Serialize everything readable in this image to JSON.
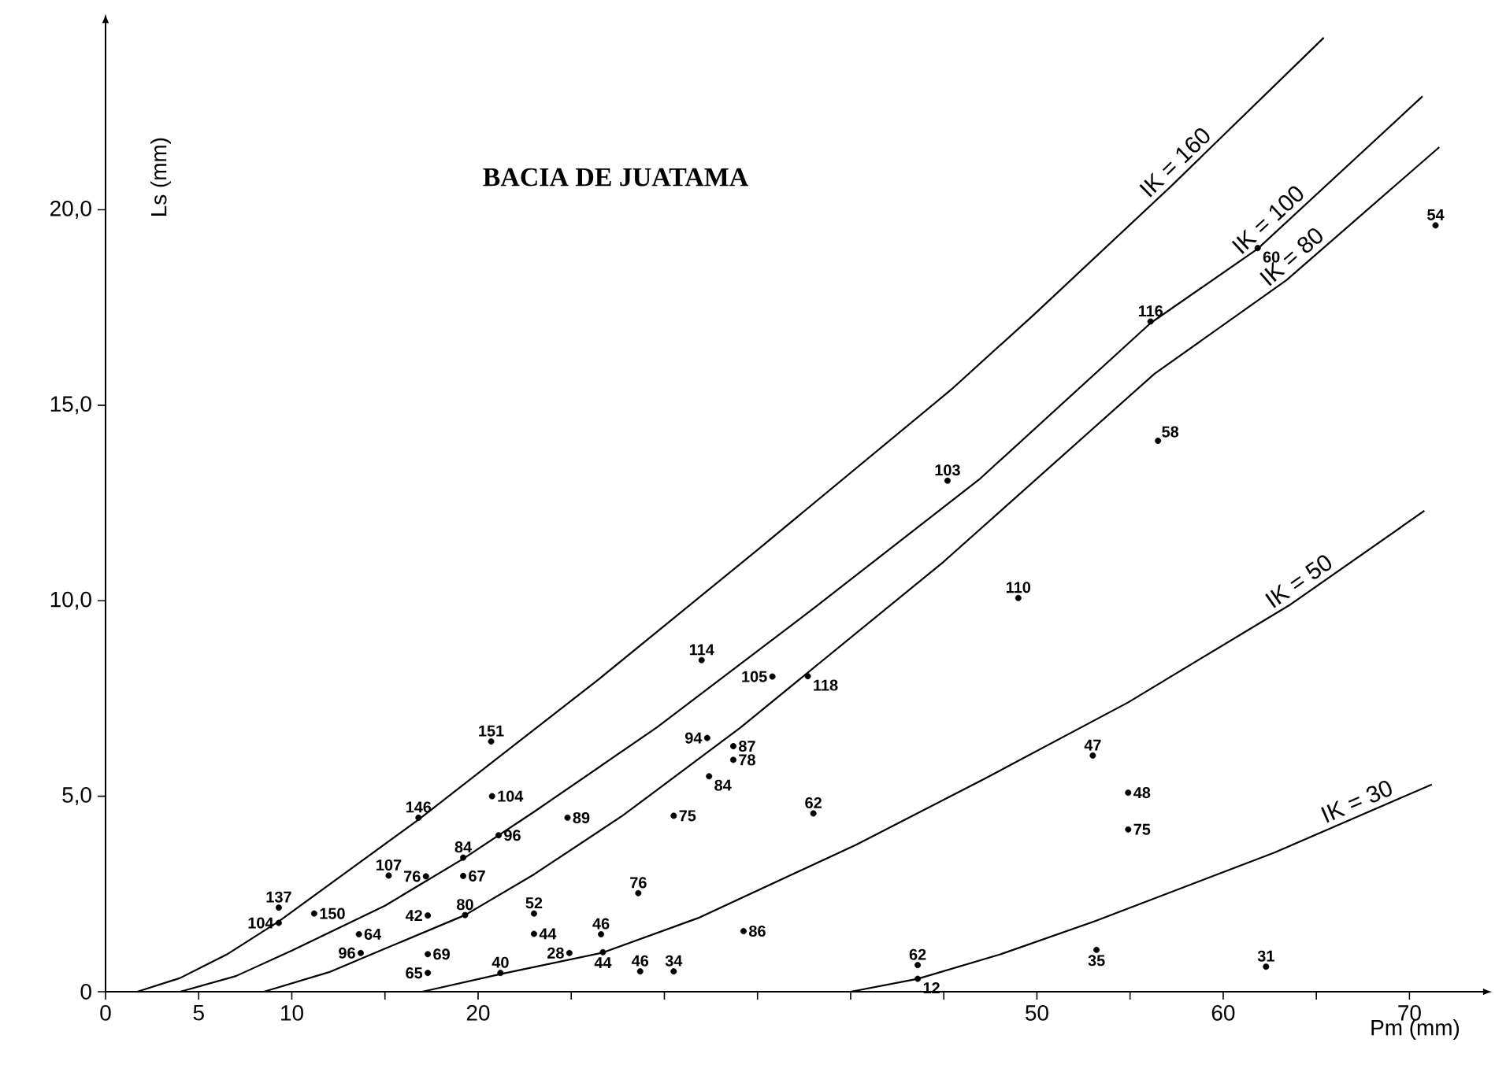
{
  "chart_data": {
    "type": "line",
    "title": "BACIA DE JUATAMA",
    "xlabel": "Pm (mm)",
    "ylabel": "Ls (mm)",
    "xlim": [
      0,
      74
    ],
    "ylim": [
      0,
      24.8
    ],
    "xticks": [
      0,
      5,
      10,
      {
        "value": 15,
        "label": null
      },
      20,
      {
        "value": 25,
        "label": null
      },
      {
        "value": 30,
        "label": null
      },
      {
        "value": 35,
        "label": null
      },
      {
        "value": 40,
        "label": null
      },
      {
        "value": 45,
        "label": null
      },
      50,
      {
        "value": 55,
        "label": null
      },
      60,
      {
        "value": 65,
        "label": null
      },
      70
    ],
    "yticks": [
      0,
      {
        "value": 5,
        "label": "5,0"
      },
      {
        "value": 10,
        "label": "10,0"
      },
      {
        "value": 15,
        "label": "15,0"
      },
      {
        "value": 20,
        "label": "20,0"
      }
    ],
    "line_style": "solid",
    "series": [
      {
        "name": "IK = 160",
        "marker": "none",
        "color": "#000000",
        "x": [
          1.7,
          4,
          6.5,
          9.3,
          16.8,
          26.5,
          35,
          45.4,
          49.8,
          57.2,
          65.4
        ],
        "values": [
          0,
          0.35,
          0.95,
          1.8,
          4.4,
          8.0,
          11.3,
          15.4,
          17.3,
          20.6,
          24.4
        ]
      },
      {
        "name": "IK = 100",
        "marker": "none",
        "color": "#000000",
        "x": [
          4,
          7,
          10,
          15,
          19.2,
          23,
          29.6,
          38,
          46.9,
          56.1,
          61.85,
          70.7
        ],
        "values": [
          0,
          0.4,
          1.05,
          2.2,
          3.4,
          4.6,
          6.76,
          9.8,
          13.1,
          17.1,
          19.0,
          22.9
        ]
      },
      {
        "name": "IK = 80",
        "marker": "none",
        "color": "#000000",
        "x": [
          8.5,
          12,
          15,
          19.3,
          23,
          27.75,
          34.1,
          45,
          56.3,
          63.4,
          71.6
        ],
        "values": [
          0,
          0.5,
          1.1,
          1.96,
          3.0,
          4.5,
          6.76,
          11.0,
          15.8,
          18.2,
          21.6
        ]
      },
      {
        "name": "IK = 50",
        "marker": "none",
        "color": "#000000",
        "x": [
          17,
          21.2,
          26.7,
          31.9,
          40.3,
          47,
          54.9,
          63.6,
          70.8
        ],
        "values": [
          0,
          0.45,
          1.0,
          1.9,
          3.76,
          5.4,
          7.4,
          9.9,
          12.3
        ]
      },
      {
        "name": "IK = 30",
        "marker": "none",
        "color": "#000000",
        "x": [
          40.0,
          43.6,
          48,
          53.1,
          62.75,
          71.2
        ],
        "values": [
          0,
          0.33,
          0.95,
          1.8,
          3.56,
          5.3
        ]
      },
      {
        "type": "scatter",
        "marker": "circle",
        "color": "#000000",
        "x": [
          9.3,
          9.3,
          11.2,
          16.8,
          15.2,
          17.2,
          19.2,
          19.2,
          21.1,
          20.75,
          20.7,
          24.8,
          17.3,
          19.3,
          13.6,
          13.7,
          17.3,
          17.3,
          21.2,
          23.0,
          23.0,
          24.9,
          26.6,
          26.7,
          28.6,
          28.7,
          30.5,
          30.5,
          32.0,
          35.8,
          37.7,
          32.3,
          33.7,
          33.7,
          32.4,
          38.0,
          34.25,
          43.6,
          43.6,
          53.0,
          54.9,
          54.9,
          53.2,
          62.3,
          45.2,
          49.0,
          56.1,
          56.5,
          61.85,
          71.4
        ],
        "values": [
          2.15,
          1.76,
          2.0,
          4.45,
          2.97,
          2.95,
          3.43,
          2.96,
          4.0,
          5.0,
          6.4,
          4.45,
          1.95,
          1.96,
          1.47,
          0.99,
          0.96,
          0.48,
          0.48,
          2.0,
          1.48,
          0.99,
          1.47,
          1.01,
          2.52,
          0.52,
          0.52,
          4.5,
          8.48,
          8.06,
          8.07,
          6.49,
          6.28,
          5.93,
          5.51,
          4.56,
          1.55,
          0.68,
          0.33,
          6.04,
          5.09,
          4.15,
          1.07,
          0.64,
          13.07,
          10.07,
          17.14,
          14.09,
          19.02,
          19.6
        ]
      }
    ],
    "annotations": [
      {
        "text": "137",
        "x": 9.3,
        "y": 2.15
      },
      {
        "text": "104",
        "x": 9.3,
        "y": 1.76
      },
      {
        "text": "150",
        "x": 11.2,
        "y": 2.0
      },
      {
        "text": "146",
        "x": 16.8,
        "y": 4.45
      },
      {
        "text": "107",
        "x": 15.2,
        "y": 2.97
      },
      {
        "text": "76",
        "x": 17.2,
        "y": 2.95
      },
      {
        "text": "84",
        "x": 19.2,
        "y": 3.43
      },
      {
        "text": "67",
        "x": 19.2,
        "y": 2.96
      },
      {
        "text": "96",
        "x": 21.1,
        "y": 4.0
      },
      {
        "text": "104",
        "x": 20.75,
        "y": 5.0
      },
      {
        "text": "151",
        "x": 20.7,
        "y": 6.4
      },
      {
        "text": "89",
        "x": 24.8,
        "y": 4.45
      },
      {
        "text": "42",
        "x": 17.3,
        "y": 1.95
      },
      {
        "text": "80",
        "x": 19.3,
        "y": 1.96
      },
      {
        "text": "64",
        "x": 13.6,
        "y": 1.47
      },
      {
        "text": "96",
        "x": 13.7,
        "y": 0.99
      },
      {
        "text": "69",
        "x": 17.3,
        "y": 0.96
      },
      {
        "text": "65",
        "x": 17.3,
        "y": 0.48
      },
      {
        "text": "40",
        "x": 21.2,
        "y": 0.48
      },
      {
        "text": "52",
        "x": 23.0,
        "y": 2.0
      },
      {
        "text": "44",
        "x": 23.0,
        "y": 1.48
      },
      {
        "text": "28",
        "x": 24.9,
        "y": 0.99
      },
      {
        "text": "46",
        "x": 26.6,
        "y": 1.47
      },
      {
        "text": "44",
        "x": 26.7,
        "y": 1.01
      },
      {
        "text": "76",
        "x": 28.6,
        "y": 2.52
      },
      {
        "text": "46",
        "x": 28.7,
        "y": 0.52
      },
      {
        "text": "34",
        "x": 30.5,
        "y": 0.52
      },
      {
        "text": "75",
        "x": 30.5,
        "y": 4.5
      },
      {
        "text": "114",
        "x": 32.0,
        "y": 8.48
      },
      {
        "text": "105",
        "x": 35.8,
        "y": 8.06
      },
      {
        "text": "118",
        "x": 37.7,
        "y": 8.07
      },
      {
        "text": "94",
        "x": 32.3,
        "y": 6.49
      },
      {
        "text": "87",
        "x": 33.7,
        "y": 6.28
      },
      {
        "text": "78",
        "x": 33.7,
        "y": 5.93
      },
      {
        "text": "84",
        "x": 32.4,
        "y": 5.51
      },
      {
        "text": "62",
        "x": 38.0,
        "y": 4.56
      },
      {
        "text": "86",
        "x": 34.25,
        "y": 1.55
      },
      {
        "text": "62",
        "x": 43.6,
        "y": 0.68
      },
      {
        "text": "12",
        "x": 43.6,
        "y": 0.33
      },
      {
        "text": "47",
        "x": 53.0,
        "y": 6.04
      },
      {
        "text": "48",
        "x": 54.9,
        "y": 5.09
      },
      {
        "text": "75",
        "x": 54.9,
        "y": 4.15
      },
      {
        "text": "35",
        "x": 53.2,
        "y": 1.07
      },
      {
        "text": "31",
        "x": 62.3,
        "y": 0.64
      },
      {
        "text": "103",
        "x": 45.2,
        "y": 13.07
      },
      {
        "text": "110",
        "x": 49.0,
        "y": 10.07
      },
      {
        "text": "116",
        "x": 56.1,
        "y": 17.14
      },
      {
        "text": "58",
        "x": 56.5,
        "y": 14.09
      },
      {
        "text": "60",
        "x": 61.85,
        "y": 19.02
      },
      {
        "text": "54",
        "x": 71.4,
        "y": 19.6
      }
    ]
  }
}
